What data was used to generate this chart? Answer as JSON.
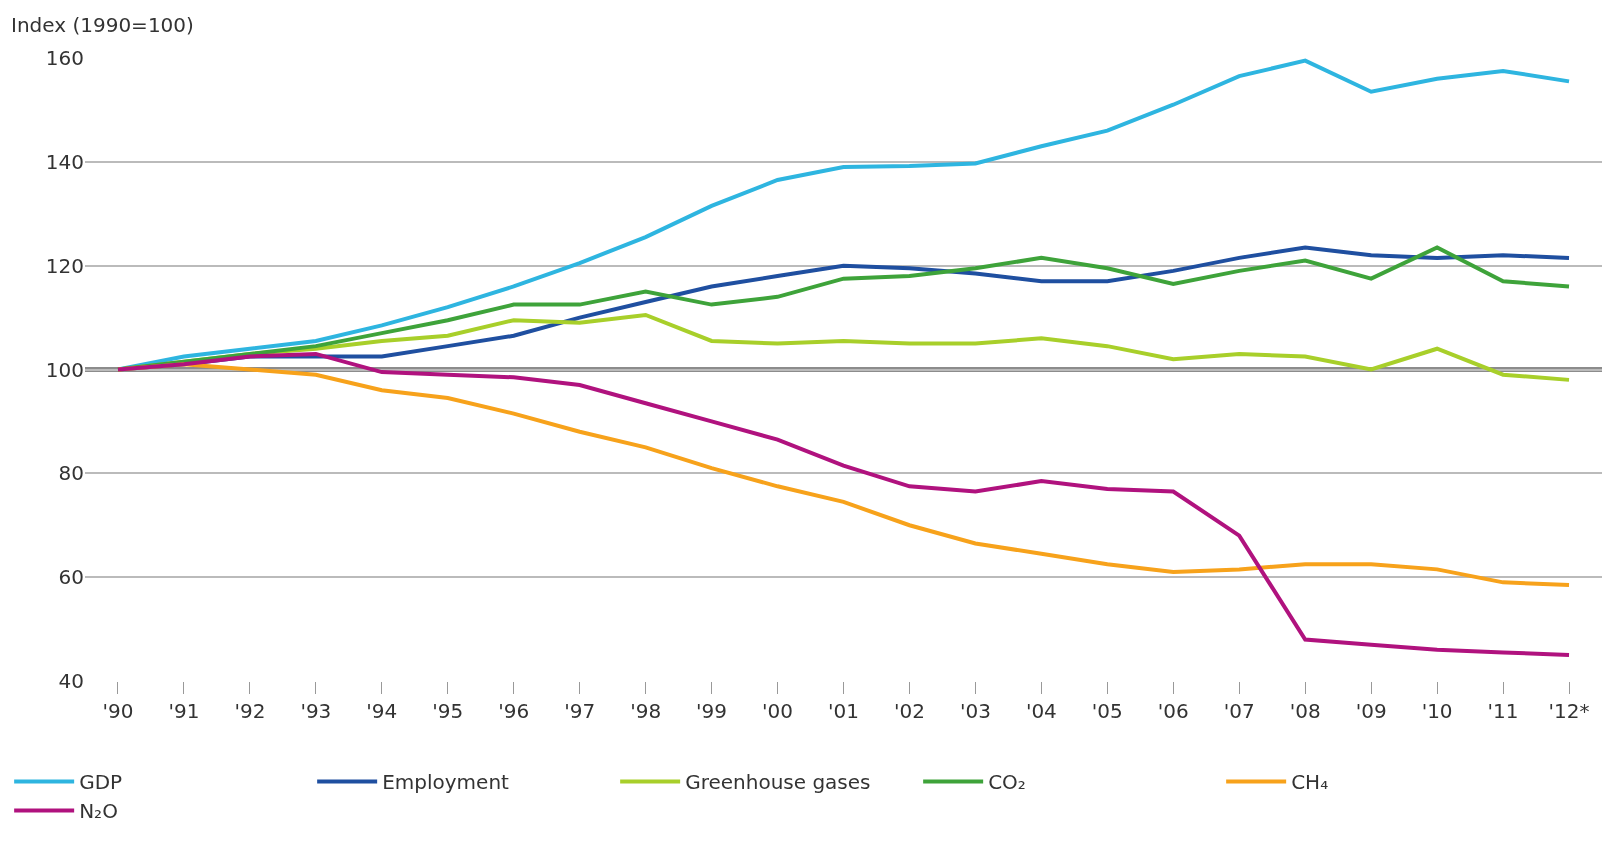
{
  "chart_data": {
    "type": "line",
    "ylabel": "Index (1990=100)",
    "categories": [
      "'90",
      "'91",
      "'92",
      "'93",
      "'94",
      "'95",
      "'96",
      "'97",
      "'98",
      "'99",
      "'00",
      "'01",
      "'02",
      "'03",
      "'04",
      "'05",
      "'06",
      "'07",
      "'08",
      "'09",
      "'10",
      "'11",
      "'12*"
    ],
    "series": [
      {
        "name": "GDP",
        "color": "#2eb5e0",
        "values": [
          100,
          102.5,
          104,
          105.5,
          108.5,
          112,
          116,
          120.5,
          125.5,
          131.5,
          136.5,
          139,
          139.2,
          139.7,
          143,
          146,
          151,
          156.5,
          159.5,
          153.5,
          156,
          157.5,
          155.5
        ]
      },
      {
        "name": "Employment",
        "color": "#1f4fa0",
        "values": [
          100,
          101,
          102.5,
          102.5,
          102.5,
          104.5,
          106.5,
          110,
          113,
          116,
          118,
          120,
          119.5,
          118.5,
          117,
          117,
          119,
          121.5,
          123.5,
          122,
          121.5,
          122,
          121.5
        ]
      },
      {
        "name": "Greenhouse gases",
        "color": "#a8cf2a",
        "values": [
          100,
          101.5,
          103,
          104,
          105.5,
          106.5,
          109.5,
          109,
          110.5,
          105.5,
          105,
          105.5,
          105,
          105,
          106,
          104.5,
          102,
          103,
          102.5,
          100,
          104,
          99,
          98
        ]
      },
      {
        "name": "CO₂",
        "color": "#3ea33a",
        "values": [
          100,
          101.5,
          103,
          104.5,
          107,
          109.5,
          112.5,
          112.5,
          115,
          112.5,
          114,
          117.5,
          118,
          119.5,
          121.5,
          119.5,
          116.5,
          119,
          121,
          117.5,
          123.5,
          117,
          116
        ]
      },
      {
        "name": "CH₄",
        "color": "#f7a21b",
        "values": [
          100,
          101,
          100,
          99,
          96,
          94.5,
          91.5,
          88,
          85,
          81,
          77.5,
          74.5,
          70,
          66.5,
          64.5,
          62.5,
          61,
          61.5,
          62.5,
          62.5,
          61.5,
          59,
          58.5
        ]
      },
      {
        "name": "N₂O",
        "color": "#b0127e",
        "values": [
          100,
          101,
          102.5,
          103,
          99.5,
          99,
          98.5,
          97,
          93.5,
          90,
          86.5,
          81.5,
          77.5,
          76.5,
          78.5,
          77,
          76.5,
          68,
          48,
          47,
          46,
          45.5,
          45
        ]
      }
    ],
    "ylim": [
      40,
      160
    ],
    "yticks": [
      40,
      60,
      80,
      100,
      120,
      140,
      160
    ],
    "grid": "y",
    "legend": "bottom",
    "marker": "none",
    "line_style": "solid",
    "ref_lines": [
      {
        "axis": "y",
        "value": 100,
        "color": "#8c8c8c"
      }
    ]
  }
}
